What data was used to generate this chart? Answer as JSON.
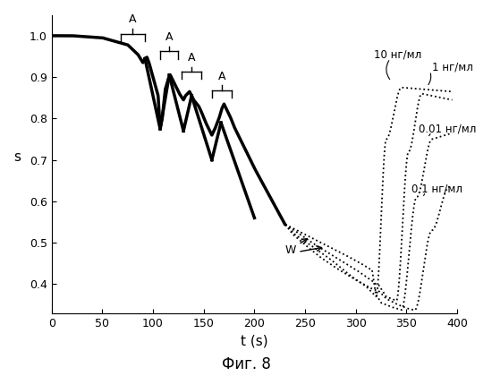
{
  "title": "",
  "xlabel": "t (s)",
  "ylabel": "s",
  "xlim": [
    0,
    400
  ],
  "ylim": [
    0.33,
    1.05
  ],
  "yticks": [
    0.4,
    0.5,
    0.6,
    0.7,
    0.8,
    0.9,
    1.0
  ],
  "xticks": [
    0,
    50,
    100,
    150,
    200,
    250,
    300,
    350,
    400
  ],
  "caption": "Фиг. 8",
  "background_color": "#ffffff",
  "line_color": "#000000"
}
